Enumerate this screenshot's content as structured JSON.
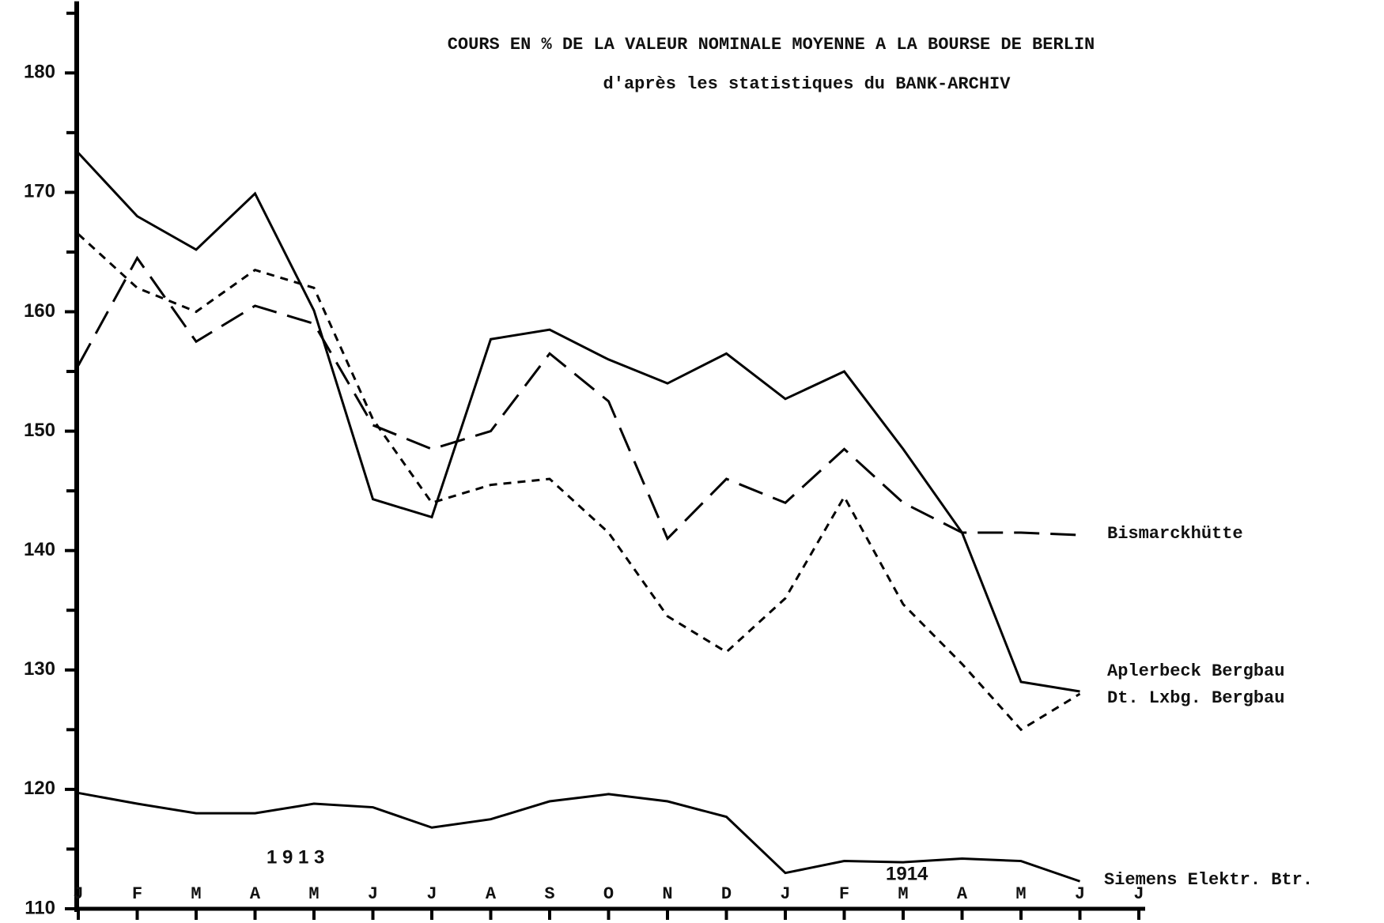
{
  "chart_data": {
    "type": "line",
    "title": "COURS EN % DE LA VALEUR NOMINALE MOYENNE A LA BOURSE DE BERLIN",
    "subtitle": "d'après les statistiques du BANK-ARCHIV",
    "annotations": [
      "1 9 1 3",
      "1914"
    ],
    "categories": [
      "J",
      "F",
      "M",
      "A",
      "M",
      "J",
      "J",
      "A",
      "S",
      "O",
      "N",
      "D",
      "J",
      "F",
      "M",
      "A",
      "M",
      "J",
      "J"
    ],
    "ylim": [
      110,
      186
    ],
    "yticks": [
      110,
      120,
      130,
      140,
      150,
      160,
      170,
      180
    ],
    "yminorticks": [
      115,
      125,
      135,
      145,
      155,
      165,
      175,
      185
    ],
    "color": "#000000",
    "series": [
      {
        "name": "Bismarckhütte",
        "dash": "long",
        "color": "#000000",
        "values": [
          155.5,
          164.5,
          157.5,
          160.5,
          159,
          150.5,
          148.5,
          150,
          156.5,
          152.5,
          141,
          146,
          144,
          148.5,
          144,
          141.5,
          141.5,
          141.3,
          null
        ]
      },
      {
        "name": "Aplerbeck Bergbau",
        "dash": "solid",
        "color": "#000000",
        "values": [
          173.3,
          168,
          165.2,
          169.9,
          160.1,
          144.3,
          142.8,
          157.7,
          158.5,
          156,
          154,
          156.5,
          152.7,
          155,
          148.5,
          141.5,
          129,
          128.2,
          null
        ]
      },
      {
        "name": "Dt. Lxbg. Bergbau",
        "dash": "short",
        "color": "#000000",
        "values": [
          166.5,
          162,
          160,
          163.5,
          162,
          151,
          144,
          145.5,
          146,
          141.5,
          134.5,
          131.5,
          136,
          144.5,
          135.5,
          130.5,
          125,
          128,
          null
        ]
      },
      {
        "name": "Siemens Elektr. Btr.",
        "dash": "solid",
        "color": "#000000",
        "values": [
          119.7,
          118.8,
          118,
          118,
          118.8,
          118.5,
          116.8,
          117.5,
          119,
          119.6,
          119,
          117.7,
          113,
          114,
          113.9,
          114.2,
          114,
          112.3,
          null
        ]
      }
    ]
  }
}
